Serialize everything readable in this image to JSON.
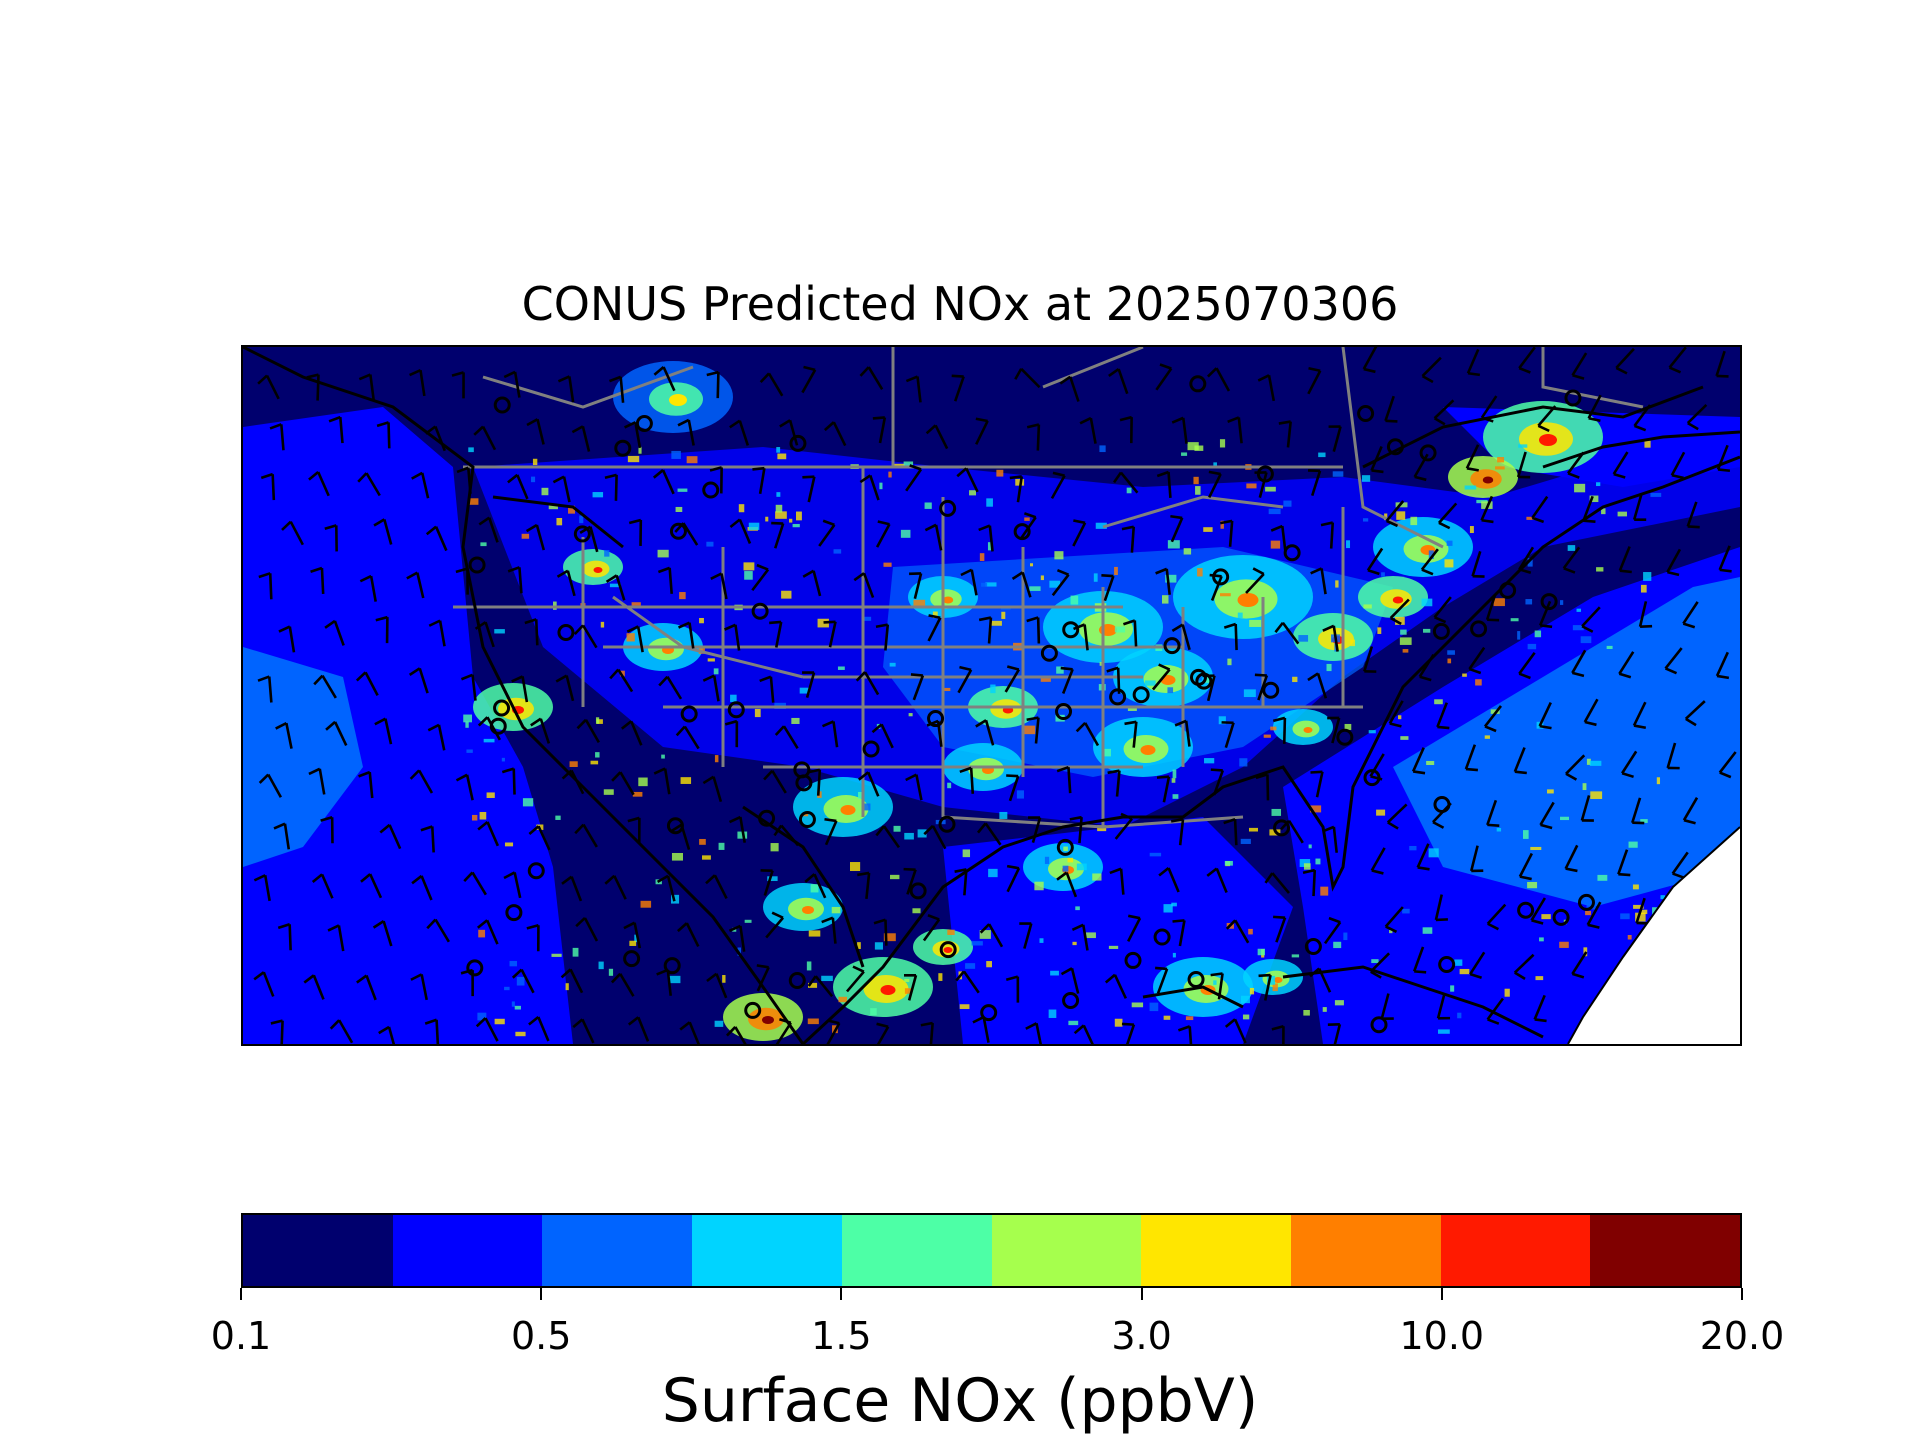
{
  "title": "CONUS Predicted NOx at 2025070306",
  "map": {
    "field": "Surface NOx",
    "overlays": [
      "wind-barbs",
      "station-circles",
      "state-borders",
      "coastlines"
    ],
    "colors": {
      "background": "#00006e",
      "border_gray": "#808080",
      "coast": "#000000",
      "no_data": "#ffffff"
    }
  },
  "colorbar": {
    "label": "Surface NOx (ppbV)",
    "colors": [
      "#00006e",
      "#0000ff",
      "#0064ff",
      "#00d4ff",
      "#4dffa6",
      "#a6ff4d",
      "#ffe600",
      "#ff7f00",
      "#ff1a00",
      "#800000"
    ],
    "tick_labels": [
      "0.1",
      "0.5",
      "1.5",
      "3.0",
      "10.0",
      "20.0"
    ],
    "tick_segments": [
      0,
      2,
      4,
      6,
      8,
      10
    ]
  }
}
